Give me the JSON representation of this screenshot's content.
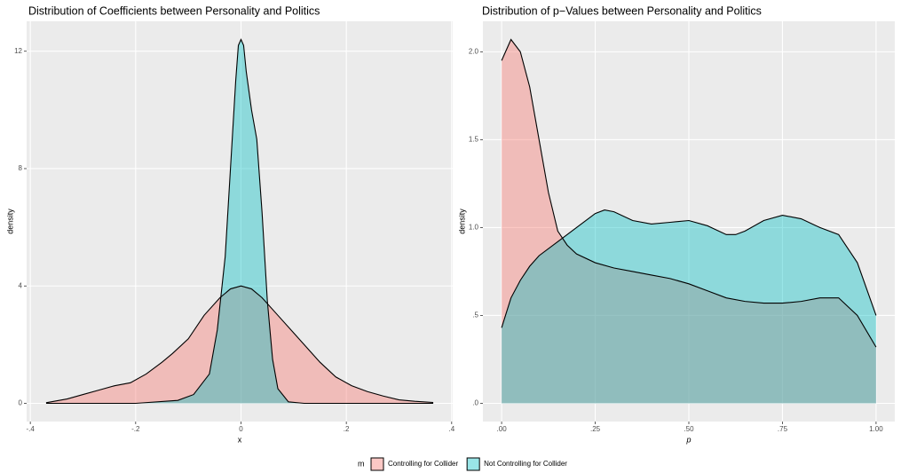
{
  "chart_data": [
    {
      "type": "density",
      "title": "Distribution of Coefficients between Personality and Politics",
      "x_label": "x",
      "y_label": "density",
      "legend_title": "m",
      "alpha": 0.4,
      "xlim": [
        -0.407,
        0.402
      ],
      "ylim": [
        -0.62,
        13.02
      ],
      "xticks": [
        {
          "value": -0.4,
          "label": "-.4"
        },
        {
          "value": -0.2,
          "label": "-.2"
        },
        0,
        {
          "value": 0.2,
          "label": ".2"
        },
        {
          "value": 0.4,
          "label": ".4"
        }
      ],
      "yticks": [
        0,
        4,
        8,
        12
      ],
      "series": [
        {
          "name": "Controlling for Collider",
          "color": "#F8766D",
          "x": [
            -0.37,
            -0.33,
            -0.3,
            -0.27,
            -0.24,
            -0.21,
            -0.18,
            -0.15,
            -0.13,
            -0.1,
            -0.07,
            -0.04,
            -0.02,
            0,
            0.02,
            0.04,
            0.07,
            0.1,
            0.13,
            0.15,
            0.18,
            0.21,
            0.24,
            0.27,
            0.3,
            0.33,
            0.365
          ],
          "values": [
            0.02,
            0.15,
            0.3,
            0.45,
            0.6,
            0.7,
            1.0,
            1.4,
            1.7,
            2.2,
            3.0,
            3.6,
            3.9,
            4.0,
            3.9,
            3.6,
            3.0,
            2.4,
            1.8,
            1.4,
            0.9,
            0.6,
            0.4,
            0.25,
            0.12,
            0.07,
            0.03
          ]
        },
        {
          "name": "Not Controlling for Collider",
          "color": "#00BFC4",
          "x": [
            -0.37,
            -0.2,
            -0.12,
            -0.09,
            -0.06,
            -0.045,
            -0.03,
            -0.02,
            -0.01,
            -0.005,
            0,
            0.005,
            0.01,
            0.02,
            0.03,
            0.04,
            0.05,
            0.06,
            0.07,
            0.09,
            0.12,
            0.365
          ],
          "values": [
            0,
            0,
            0.1,
            0.3,
            1.0,
            2.5,
            5.0,
            8.0,
            11.0,
            12.2,
            12.4,
            12.2,
            11.3,
            10.0,
            9.0,
            6.5,
            3.5,
            1.5,
            0.5,
            0.05,
            0,
            0
          ]
        }
      ]
    },
    {
      "type": "density",
      "title": "Distribution of p−Values between Personality and Politics",
      "x_label": "p",
      "y_label": "density",
      "alpha": 0.4,
      "xlim": [
        -0.05,
        1.05
      ],
      "ylim": [
        -0.1035,
        2.1735
      ],
      "xticks": [
        {
          "value": 0,
          "label": ".00"
        },
        {
          "value": 0.25,
          "label": ".25"
        },
        {
          "value": 0.5,
          "label": ".50"
        },
        {
          "value": 0.75,
          "label": ".75"
        },
        {
          "value": 1,
          "label": "1.00"
        }
      ],
      "yticks": [
        {
          "value": 0,
          "label": ".0"
        },
        {
          "value": 0.5,
          "label": ".5"
        },
        {
          "value": 1,
          "label": "1.0"
        },
        {
          "value": 1.5,
          "label": "1.5"
        },
        {
          "value": 2,
          "label": "2.0"
        }
      ],
      "series": [
        {
          "color": "#F8766D",
          "x": [
            0,
            0.025,
            0.05,
            0.075,
            0.1,
            0.125,
            0.15,
            0.175,
            0.2,
            0.25,
            0.3,
            0.35,
            0.4,
            0.45,
            0.5,
            0.55,
            0.6,
            0.65,
            0.7,
            0.75,
            0.8,
            0.85,
            0.9,
            0.95,
            1.0
          ],
          "values": [
            1.95,
            2.07,
            2.0,
            1.8,
            1.5,
            1.2,
            0.98,
            0.9,
            0.85,
            0.8,
            0.77,
            0.75,
            0.73,
            0.71,
            0.68,
            0.64,
            0.6,
            0.58,
            0.57,
            0.57,
            0.58,
            0.6,
            0.6,
            0.5,
            0.32
          ]
        },
        {
          "color": "#00BFC4",
          "x": [
            0,
            0.025,
            0.05,
            0.075,
            0.1,
            0.15,
            0.2,
            0.25,
            0.275,
            0.3,
            0.35,
            0.4,
            0.45,
            0.5,
            0.55,
            0.6,
            0.625,
            0.65,
            0.7,
            0.75,
            0.8,
            0.85,
            0.9,
            0.95,
            1.0
          ],
          "values": [
            0.43,
            0.6,
            0.7,
            0.78,
            0.84,
            0.92,
            1.0,
            1.08,
            1.1,
            1.09,
            1.04,
            1.02,
            1.03,
            1.04,
            1.01,
            0.96,
            0.96,
            0.98,
            1.04,
            1.07,
            1.05,
            1.0,
            0.96,
            0.8,
            0.5
          ]
        }
      ]
    }
  ]
}
